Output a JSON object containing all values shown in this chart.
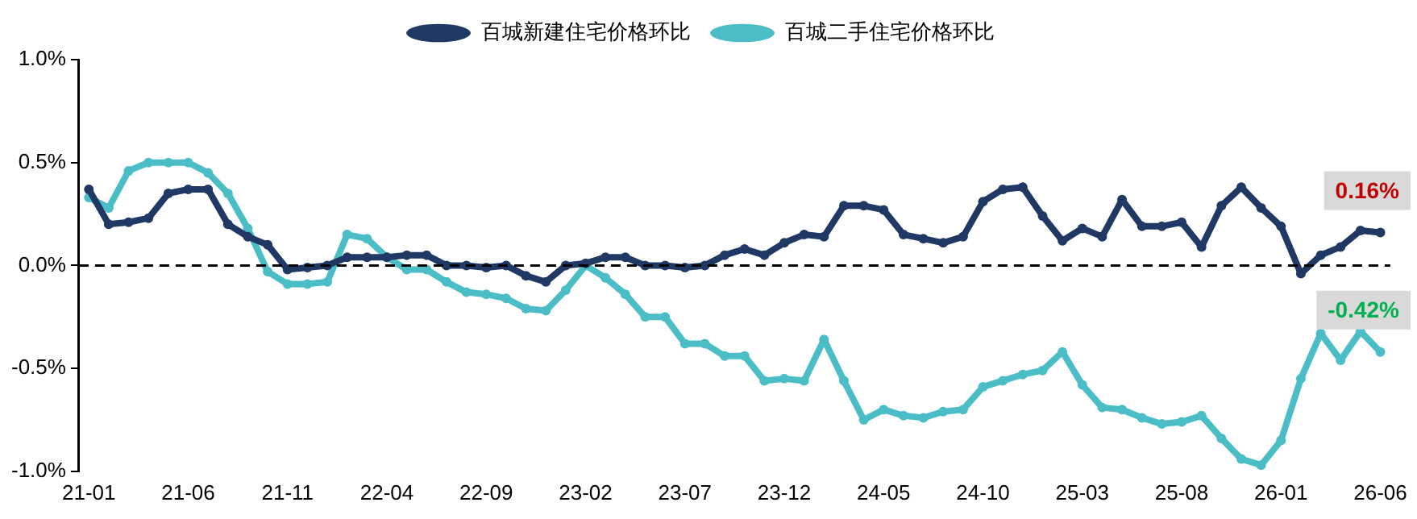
{
  "chart_data": {
    "type": "line",
    "categories": [
      "21-01",
      null,
      null,
      null,
      null,
      "21-06",
      null,
      null,
      null,
      null,
      "21-11",
      null,
      null,
      null,
      null,
      "22-04",
      null,
      null,
      null,
      null,
      "22-09",
      null,
      null,
      null,
      null,
      "23-02",
      null,
      null,
      null,
      null,
      "23-07",
      null,
      null,
      null,
      null,
      "23-12",
      null,
      null,
      null,
      null,
      "24-05",
      null,
      null,
      null,
      null,
      "24-10",
      null,
      null,
      null,
      null,
      "25-03",
      null,
      null,
      null,
      null,
      "25-08",
      null,
      null,
      null,
      null,
      "26-01",
      null,
      null,
      null,
      null,
      "26-06"
    ],
    "series": [
      {
        "name": "百城新建住宅价格环比",
        "color": "#1f3864",
        "values": [
          0.37,
          0.2,
          0.21,
          0.23,
          0.35,
          0.37,
          0.37,
          0.2,
          0.14,
          0.1,
          -0.02,
          -0.01,
          0.0,
          0.04,
          0.04,
          0.04,
          0.05,
          0.05,
          0.0,
          0.0,
          -0.01,
          0.0,
          -0.05,
          -0.08,
          0.0,
          0.01,
          0.04,
          0.04,
          0.0,
          0.0,
          -0.01,
          0.0,
          0.05,
          0.08,
          0.05,
          0.11,
          0.15,
          0.14,
          0.29,
          0.29,
          0.27,
          0.15,
          0.13,
          0.11,
          0.14,
          0.31,
          0.37,
          0.38,
          0.24,
          0.12,
          0.18,
          0.14,
          0.32,
          0.19,
          0.19,
          0.21,
          0.09,
          0.29,
          0.38,
          0.28,
          0.19,
          -0.04,
          0.05,
          0.09,
          0.17,
          0.16
        ],
        "value_labels": [
          null,
          null,
          null,
          null,
          null,
          null,
          null,
          null,
          null,
          null,
          null,
          null,
          null,
          null,
          null,
          null,
          null,
          null,
          null,
          null,
          null,
          null,
          null,
          null,
          null,
          null,
          null,
          null,
          null,
          null,
          null,
          null,
          null,
          null,
          null,
          null,
          null,
          null,
          null,
          null,
          null,
          null,
          null,
          null,
          null,
          null,
          null,
          null,
          null,
          null,
          null,
          null,
          null,
          null,
          null,
          null,
          null,
          null,
          null,
          null,
          null,
          null,
          null,
          null,
          null,
          "0.16%"
        ]
      },
      {
        "name": "百城二手住宅价格环比",
        "color": "#4bbdc6",
        "values": [
          0.33,
          0.28,
          0.46,
          0.5,
          0.5,
          0.5,
          0.45,
          0.35,
          0.18,
          -0.03,
          -0.09,
          -0.09,
          -0.08,
          0.15,
          0.13,
          0.04,
          -0.02,
          -0.02,
          -0.08,
          -0.13,
          -0.14,
          -0.16,
          -0.21,
          -0.22,
          -0.12,
          0.0,
          -0.06,
          -0.14,
          -0.25,
          -0.25,
          -0.38,
          -0.38,
          -0.44,
          -0.44,
          -0.56,
          -0.55,
          -0.56,
          -0.36,
          -0.56,
          -0.75,
          -0.7,
          -0.73,
          -0.74,
          -0.71,
          -0.7,
          -0.59,
          -0.56,
          -0.53,
          -0.51,
          -0.42,
          -0.58,
          -0.69,
          -0.7,
          -0.74,
          -0.77,
          -0.76,
          -0.73,
          -0.84,
          -0.94,
          -0.97,
          -0.85,
          -0.55,
          -0.33,
          -0.46,
          -0.32,
          -0.42
        ],
        "value_labels": [
          null,
          null,
          null,
          null,
          null,
          null,
          null,
          null,
          null,
          null,
          null,
          null,
          null,
          null,
          null,
          null,
          null,
          null,
          null,
          null,
          null,
          null,
          null,
          null,
          null,
          null,
          null,
          null,
          null,
          null,
          null,
          null,
          null,
          null,
          null,
          null,
          null,
          null,
          null,
          null,
          null,
          null,
          null,
          null,
          null,
          null,
          null,
          null,
          null,
          null,
          null,
          null,
          null,
          null,
          null,
          null,
          null,
          null,
          null,
          null,
          null,
          null,
          null,
          null,
          null,
          "-0.42%"
        ]
      }
    ],
    "ylim": [
      -1.0,
      1.0
    ],
    "yticks": [
      {
        "value": -1.0,
        "label": "-1.0%"
      },
      {
        "value": -0.5,
        "label": "-0.5%"
      },
      {
        "value": 0,
        "label": "0.0%"
      },
      {
        "value": 0.5,
        "label": "0.5%"
      },
      {
        "value": 1.0,
        "label": "1.0%"
      }
    ],
    "ref_lines": [
      {
        "axis": "y",
        "value": 0,
        "color": "#000000",
        "line_style": "dashed"
      }
    ],
    "grid": false,
    "legend": "top",
    "marker": "circle",
    "line_style": "solid"
  }
}
